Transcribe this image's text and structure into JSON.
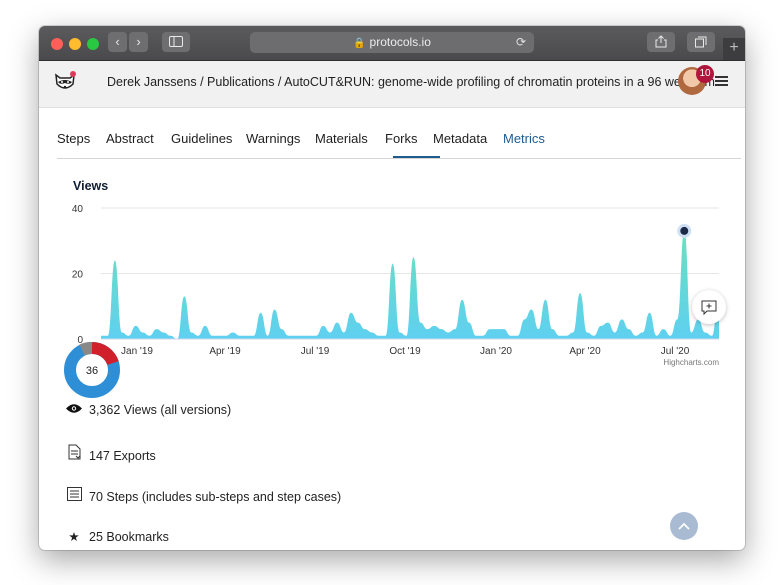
{
  "browser": {
    "url": "protocols.io",
    "back_glyph": "‹",
    "forward_glyph": "›",
    "new_tab_glyph": "+"
  },
  "header": {
    "breadcrumb": "Derek Janssens / Publications / AutoCUT&RUN: genome-wide profiling of chromatin proteins in a 96 well form...",
    "notification_count": "10",
    "logo_icon": "raccoon-logo-icon",
    "menu_icon": "hamburger-icon"
  },
  "tabs": [
    {
      "label": "Steps"
    },
    {
      "label": "Abstract"
    },
    {
      "label": "Guidelines"
    },
    {
      "label": "Warnings"
    },
    {
      "label": "Materials"
    },
    {
      "label": "Forks"
    },
    {
      "label": "Metadata"
    },
    {
      "label": "Metrics"
    }
  ],
  "active_tab": "Forks",
  "chart_data": {
    "type": "area",
    "title": "Views",
    "x_tick_labels": [
      "Jan '19",
      "Apr '19",
      "Jul '19",
      "Oct '19",
      "Jan '20",
      "Apr '20",
      "Jul '20"
    ],
    "y_tick_labels": [
      "0",
      "20",
      "40"
    ],
    "ylim": [
      0,
      40
    ],
    "credits": "Highcharts.com",
    "grid": true,
    "colors": {
      "top": "#6ae0bd",
      "bottom": "#5fd0f0",
      "marker": "#1b2a47"
    },
    "highlighted_point": {
      "index": 84,
      "value": 33
    },
    "series": [
      {
        "values": [
          1,
          1,
          24,
          2,
          1,
          4,
          2,
          1,
          3,
          2,
          1,
          0,
          13,
          2,
          1,
          4,
          1,
          1,
          1,
          2,
          1,
          1,
          1,
          8,
          1,
          9,
          3,
          1,
          1,
          1,
          1,
          1,
          4,
          2,
          5,
          2,
          8,
          5,
          3,
          2,
          1,
          1,
          23,
          2,
          1,
          25,
          5,
          3,
          4,
          3,
          2,
          3,
          12,
          5,
          1,
          1,
          3,
          3,
          3,
          1,
          1,
          6,
          9,
          3,
          12,
          3,
          1,
          1,
          2,
          14,
          2,
          1,
          4,
          5,
          2,
          6,
          3,
          1,
          2,
          8,
          1,
          3,
          1,
          6,
          33,
          2,
          6,
          2,
          1,
          14
        ]
      }
    ]
  },
  "altmetric": {
    "score": "36"
  },
  "stats": [
    {
      "icon": "eye-icon",
      "glyph": "👁",
      "label": "3,362 Views (all versions)"
    },
    {
      "icon": "export-document-icon",
      "glyph": "⎘",
      "label": "147 Exports"
    },
    {
      "icon": "steps-list-icon",
      "glyph": "☰",
      "label": "70 Steps (includes sub-steps and step cases)"
    },
    {
      "icon": "star-icon",
      "glyph": "★",
      "label": "25 Bookmarks"
    }
  ],
  "floating": {
    "comment_icon": "add-comment-icon",
    "scroll_top_icon": "chevron-up-icon"
  }
}
